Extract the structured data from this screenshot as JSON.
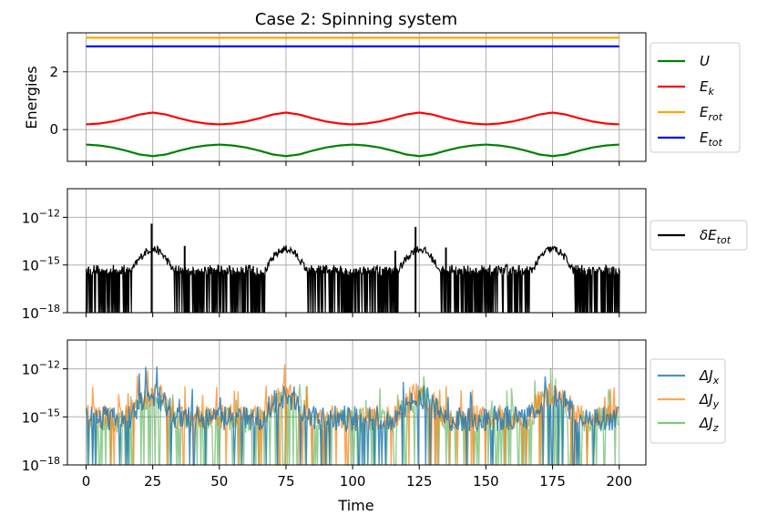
{
  "chart_data": [
    {
      "panel": "energies",
      "type": "line",
      "title": "Case 2: Spinning system",
      "ylabel": "Energies",
      "xlim": [
        -7,
        210
      ],
      "ylim": [
        -1.1,
        3.35
      ],
      "yticks": [
        {
          "v": 0,
          "label": "0"
        },
        {
          "v": 2,
          "label": "2"
        }
      ],
      "xticks": [
        0,
        25,
        50,
        75,
        100,
        125,
        150,
        175,
        200
      ],
      "grid": true,
      "legend_position": "right",
      "series": [
        {
          "name": "U",
          "sub": "",
          "color": "#008000",
          "kind": "U",
          "x": [
            0,
            5,
            10,
            15,
            20,
            25,
            30,
            35,
            40,
            45,
            50
          ],
          "y": [
            -0.52,
            -0.55,
            -0.62,
            -0.73,
            -0.86,
            -0.92,
            -0.86,
            -0.73,
            -0.62,
            -0.55,
            -0.52
          ],
          "period": 50
        },
        {
          "name": "E",
          "sub": "k",
          "color": "#ff0000",
          "kind": "Ek",
          "x": [
            0,
            5,
            10,
            15,
            20,
            25,
            30,
            35,
            40,
            45,
            50
          ],
          "y": [
            0.18,
            0.21,
            0.28,
            0.39,
            0.52,
            0.59,
            0.52,
            0.39,
            0.28,
            0.21,
            0.18
          ],
          "period": 50
        },
        {
          "name": "E",
          "sub": "rot",
          "color": "#ffa500",
          "value": 3.18
        },
        {
          "name": "E",
          "sub": "tot",
          "color": "#0000ff",
          "value": 2.88
        }
      ]
    },
    {
      "panel": "energy-error",
      "type": "line",
      "yscale": "log",
      "ylim_exp": [
        -18,
        -10.2
      ],
      "yticks": [
        {
          "exp": -18,
          "base": "10",
          "sup": "−18"
        },
        {
          "exp": -15,
          "base": "10",
          "sup": "−15"
        },
        {
          "exp": -12,
          "base": "10",
          "sup": "−12"
        }
      ],
      "grid": true,
      "legend_position": "right",
      "series": [
        {
          "name": "δE",
          "sub": "tot",
          "color": "#000000",
          "envelope_log10": {
            "baseline": -15.4,
            "bump": -14.0,
            "bump_centers": [
              25,
              75,
              125,
              175
            ],
            "bump_halfwidth": 8
          },
          "spikes": [
            {
              "x": 24.6,
              "log10": -12.4
            },
            {
              "x": 123.6,
              "log10": -12.6
            },
            {
              "x": 37,
              "log10": -13.8
            },
            {
              "x": 135,
              "log10": -13.9
            },
            {
              "x": 116,
              "log10": -14.1
            }
          ]
        }
      ]
    },
    {
      "panel": "angular-momentum-error",
      "type": "line",
      "xlabel": "Time",
      "yscale": "log",
      "ylim_exp": [
        -18,
        -10.2
      ],
      "yticks": [
        {
          "exp": -18,
          "base": "10",
          "sup": "−18"
        },
        {
          "exp": -15,
          "base": "10",
          "sup": "−15"
        },
        {
          "exp": -12,
          "base": "10",
          "sup": "−12"
        }
      ],
      "xticks": [
        0,
        25,
        50,
        75,
        100,
        125,
        150,
        175,
        200
      ],
      "grid": true,
      "legend_position": "right",
      "series": [
        {
          "name": "ΔJ",
          "sub": "x",
          "color": "#1f77b4",
          "alpha": 0.8,
          "center_log10": -15.1,
          "bump_log10": -13.7
        },
        {
          "name": "ΔJ",
          "sub": "y",
          "color": "#ff7f0e",
          "alpha": 0.7,
          "center_log10": -15.0,
          "bump_log10": -13.6
        },
        {
          "name": "ΔJ",
          "sub": "z",
          "color": "#2ca02c",
          "alpha": 0.5,
          "center_log10": -15.2,
          "bump_log10": -13.8
        }
      ]
    }
  ]
}
